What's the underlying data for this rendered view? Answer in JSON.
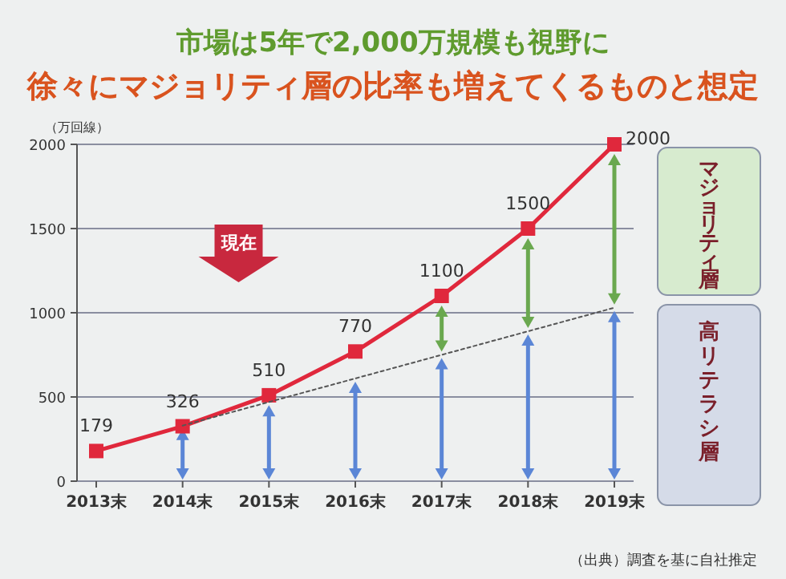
{
  "chart_data": {
    "type": "line",
    "title": "市場は5年で2,000万規模も視野に",
    "subtitle": "徐々にマジョリティ層の比率も増えてくるものと想定",
    "ylabel": "（万回線）",
    "categories": [
      "2013末",
      "2014末",
      "2015末",
      "2016末",
      "2017末",
      "2018末",
      "2019末"
    ],
    "series": [
      {
        "color": "#e0283c",
        "values": [
          179,
          326,
          510,
          770,
          1100,
          1500,
          2000
        ],
        "marker": "square",
        "line_style": "solid",
        "value_labels": [
          "179",
          "326",
          "510",
          "770",
          "1100",
          "1500",
          "2000"
        ]
      },
      {
        "color": "#555555",
        "values": [
          null,
          330,
          470,
          610,
          750,
          890,
          1030
        ],
        "marker": "none",
        "line_style": "dotted"
      }
    ],
    "ylim": [
      0,
      2000
    ],
    "yticks": [
      0,
      500,
      1000,
      1500,
      2000
    ],
    "grid": "y",
    "annotations": [
      "マジョリティ層",
      "高リテラシ層",
      "現在",
      "（出典）調査を基に自社推定"
    ]
  }
}
